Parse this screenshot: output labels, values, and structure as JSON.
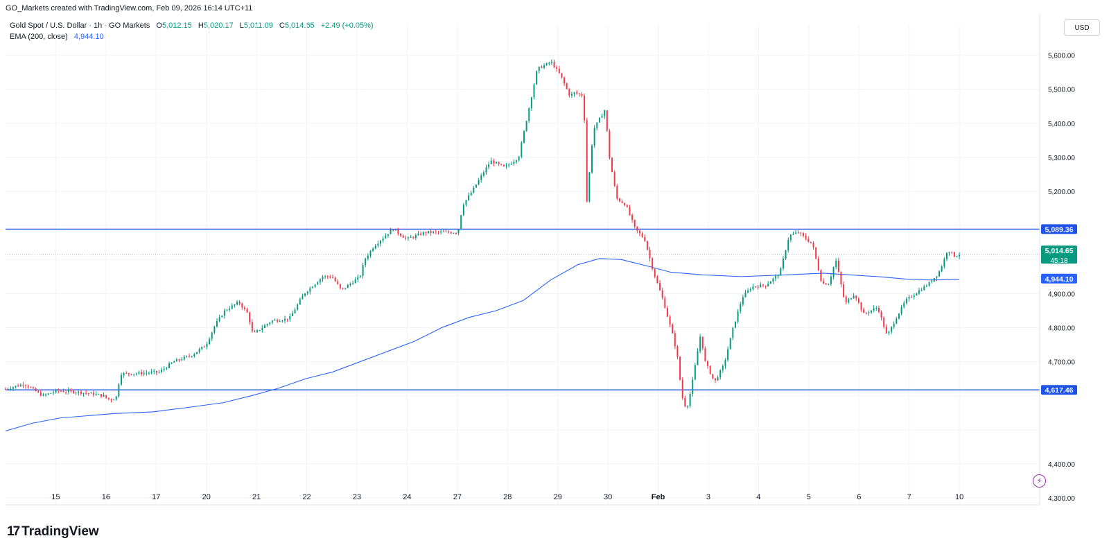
{
  "header": {
    "attribution": "GO_Markets created with TradingView.com, Feb 09, 2026 16:14 UTC+11"
  },
  "legend": {
    "symbol": "Gold Spot / U.S. Dollar · 1h · GO Markets",
    "o_label": "O",
    "o_value": "5,012.15",
    "h_label": "H",
    "h_value": "5,020.17",
    "l_label": "L",
    "l_value": "5,011.09",
    "c_label": "C",
    "c_value": "5,014.65",
    "change": "+2.49 (+0.05%)",
    "ema_label": "EMA (200, close)",
    "ema_value": "4,944.10"
  },
  "currency_button": "USD",
  "colors": {
    "up": "#089981",
    "down": "#f23645",
    "ema": "#2962ff",
    "hline": "#1e53e5",
    "price_label_bg": "#089981",
    "grid": "#f0f3fa",
    "text": "#131722"
  },
  "footer": {
    "brand": "TradingView",
    "logo_mark": "17"
  },
  "chart_data": {
    "type": "candlestick",
    "title": "Gold Spot / U.S. Dollar · 1h · GO Markets",
    "y_ticks": [
      4300,
      4400,
      4500,
      4600,
      4700,
      4800,
      4900,
      5000,
      5100,
      5200,
      5300,
      5400,
      5500,
      5600
    ],
    "y_tick_labels": [
      "4,300.00",
      "4,400.00",
      "",
      "",
      "4,700.00",
      "4,800.00",
      "4,900.00",
      "",
      "",
      "5,200.00",
      "5,300.00",
      "5,400.00",
      "5,500.00",
      "5,600.00"
    ],
    "ylim": [
      4280,
      5650
    ],
    "x_tick_labels": [
      "15",
      "16",
      "17",
      "20",
      "21",
      "22",
      "23",
      "24",
      "27",
      "28",
      "29",
      "30",
      "Feb",
      "3",
      "4",
      "5",
      "6",
      "7",
      "10"
    ],
    "horizontal_lines": [
      {
        "value": 5089.36,
        "label": "5,089.36"
      },
      {
        "value": 4617.46,
        "label": "4,617.46"
      }
    ],
    "last_price": {
      "value": 5014.65,
      "label": "5,014.65",
      "countdown": "45:18"
    },
    "ema": {
      "name": "EMA (200, close)",
      "last_label": "4,944.10",
      "points": [
        [
          0,
          4497
        ],
        [
          0.5,
          4520
        ],
        [
          1,
          4535
        ],
        [
          2,
          4548
        ],
        [
          2.7,
          4553
        ],
        [
          3.3,
          4565
        ],
        [
          4,
          4580
        ],
        [
          4.5,
          4600
        ],
        [
          5,
          4622
        ],
        [
          5.5,
          4650
        ],
        [
          6,
          4670
        ],
        [
          6.5,
          4700
        ],
        [
          7,
          4730
        ],
        [
          7.5,
          4760
        ],
        [
          8,
          4800
        ],
        [
          8.5,
          4830
        ],
        [
          9,
          4850
        ],
        [
          9.5,
          4880
        ],
        [
          10,
          4940
        ],
        [
          10.5,
          4985
        ],
        [
          10.9,
          5003
        ],
        [
          11.3,
          5000
        ],
        [
          11.8,
          4980
        ],
        [
          12.2,
          4963
        ],
        [
          12.8,
          4955
        ],
        [
          13.5,
          4950
        ],
        [
          14.3,
          4955
        ],
        [
          15,
          4960
        ],
        [
          15.5,
          4955
        ],
        [
          16,
          4950
        ],
        [
          16.5,
          4943
        ],
        [
          17,
          4940
        ],
        [
          17.5,
          4942
        ]
      ]
    },
    "ohlc_keypoints": [
      [
        0,
        4620
      ],
      [
        0.4,
        4635
      ],
      [
        0.8,
        4600
      ],
      [
        1.1,
        4615
      ],
      [
        1.5,
        4612
      ],
      [
        1.9,
        4605
      ],
      [
        2.1,
        4600
      ],
      [
        2.2,
        4590
      ],
      [
        2.3,
        4590
      ],
      [
        2.4,
        4600
      ],
      [
        2.45,
        4665
      ],
      [
        2.7,
        4665
      ],
      [
        3.3,
        4670
      ],
      [
        3.6,
        4700
      ],
      [
        4.0,
        4720
      ],
      [
        4.3,
        4750
      ],
      [
        4.5,
        4810
      ],
      [
        4.7,
        4850
      ],
      [
        5.0,
        4875
      ],
      [
        5.2,
        4840
      ],
      [
        5.3,
        4780
      ],
      [
        5.7,
        4820
      ],
      [
        6.0,
        4825
      ],
      [
        6.1,
        4830
      ],
      [
        6.4,
        4900
      ],
      [
        6.8,
        4950
      ],
      [
        7.0,
        4950
      ],
      [
        7.2,
        4910
      ],
      [
        7.6,
        4950
      ],
      [
        7.7,
        5000
      ],
      [
        7.9,
        5040
      ],
      [
        8.3,
        5090
      ],
      [
        8.6,
        5060
      ],
      [
        9.0,
        5080
      ],
      [
        9.4,
        5080
      ],
      [
        9.7,
        5080
      ],
      [
        9.8,
        5160
      ],
      [
        10.0,
        5200
      ],
      [
        10.4,
        5290
      ],
      [
        10.7,
        5270
      ],
      [
        11.0,
        5300
      ],
      [
        11.2,
        5430
      ],
      [
        11.4,
        5560
      ],
      [
        11.7,
        5580
      ],
      [
        11.9,
        5540
      ],
      [
        12.1,
        5480
      ],
      [
        12.2,
        5490
      ],
      [
        12.4,
        5480
      ],
      [
        12.45,
        5150
      ],
      [
        12.6,
        5380
      ],
      [
        12.85,
        5440
      ],
      [
        12.95,
        5300
      ],
      [
        13.1,
        5180
      ],
      [
        13.3,
        5160
      ],
      [
        13.5,
        5090
      ],
      [
        13.7,
        5060
      ],
      [
        13.9,
        4960
      ],
      [
        14.1,
        4880
      ],
      [
        14.3,
        4780
      ],
      [
        14.4,
        4720
      ],
      [
        14.5,
        4600
      ],
      [
        14.6,
        4560
      ],
      [
        14.7,
        4620
      ],
      [
        14.8,
        4700
      ],
      [
        14.9,
        4780
      ],
      [
        15.0,
        4700
      ],
      [
        15.2,
        4640
      ],
      [
        15.4,
        4690
      ],
      [
        15.6,
        4800
      ],
      [
        15.8,
        4890
      ],
      [
        16.0,
        4920
      ],
      [
        16.3,
        4925
      ],
      [
        16.6,
        4960
      ],
      [
        16.8,
        5070
      ],
      [
        17.0,
        5080
      ],
      [
        17.3,
        5045
      ],
      [
        17.5,
        4930
      ],
      [
        17.65,
        4930
      ],
      [
        17.8,
        5000
      ],
      [
        18.0,
        4870
      ],
      [
        18.2,
        4900
      ],
      [
        18.4,
        4840
      ],
      [
        18.7,
        4860
      ],
      [
        18.9,
        4775
      ],
      [
        19.1,
        4830
      ],
      [
        19.3,
        4880
      ],
      [
        19.5,
        4900
      ],
      [
        19.8,
        4930
      ],
      [
        20.0,
        4960
      ],
      [
        20.1,
        4990
      ],
      [
        20.2,
        5030
      ],
      [
        20.35,
        5010
      ],
      [
        20.45,
        5015
      ]
    ]
  }
}
